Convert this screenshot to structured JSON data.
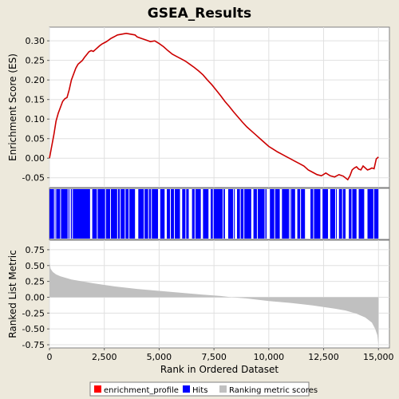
{
  "chart_data": {
    "type": "line",
    "title": "GSEA_Results",
    "xlabel": "Rank in Ordered Dataset",
    "xlim": [
      0,
      15500
    ],
    "x_ticks": [
      0,
      2500,
      5000,
      7500,
      10000,
      12500,
      15000
    ],
    "x_tick_labels": [
      "0",
      "2,500",
      "5,000",
      "7,500",
      "10,000",
      "12,500",
      "15,000"
    ],
    "n_items": 15000,
    "enrichment": {
      "ylabel": "Enrichment Score (ES)",
      "ylim": [
        -0.075,
        0.335
      ],
      "y_ticks": [
        -0.05,
        0.0,
        0.05,
        0.1,
        0.15,
        0.2,
        0.25,
        0.3
      ],
      "y_tick_labels": [
        "-0.05",
        "0.00",
        "0.05",
        "0.10",
        "0.15",
        "0.20",
        "0.25",
        "0.30"
      ],
      "series": [
        {
          "name": "enrichment_profile",
          "color": "#cc0000",
          "points": [
            [
              0,
              0.0
            ],
            [
              100,
              0.03
            ],
            [
              200,
              0.06
            ],
            [
              300,
              0.095
            ],
            [
              400,
              0.115
            ],
            [
              500,
              0.13
            ],
            [
              600,
              0.145
            ],
            [
              700,
              0.152
            ],
            [
              800,
              0.155
            ],
            [
              900,
              0.175
            ],
            [
              1000,
              0.2
            ],
            [
              1100,
              0.215
            ],
            [
              1200,
              0.23
            ],
            [
              1300,
              0.24
            ],
            [
              1400,
              0.245
            ],
            [
              1500,
              0.25
            ],
            [
              1600,
              0.258
            ],
            [
              1700,
              0.265
            ],
            [
              1800,
              0.272
            ],
            [
              1900,
              0.275
            ],
            [
              2000,
              0.273
            ],
            [
              2100,
              0.278
            ],
            [
              2200,
              0.283
            ],
            [
              2300,
              0.288
            ],
            [
              2400,
              0.292
            ],
            [
              2500,
              0.295
            ],
            [
              2600,
              0.298
            ],
            [
              2700,
              0.302
            ],
            [
              2800,
              0.306
            ],
            [
              2900,
              0.309
            ],
            [
              3000,
              0.312
            ],
            [
              3100,
              0.315
            ],
            [
              3200,
              0.316
            ],
            [
              3300,
              0.317
            ],
            [
              3400,
              0.318
            ],
            [
              3500,
              0.319
            ],
            [
              3600,
              0.318
            ],
            [
              3700,
              0.317
            ],
            [
              3800,
              0.316
            ],
            [
              3900,
              0.315
            ],
            [
              4000,
              0.31
            ],
            [
              4200,
              0.306
            ],
            [
              4400,
              0.302
            ],
            [
              4600,
              0.298
            ],
            [
              4800,
              0.3
            ],
            [
              5000,
              0.293
            ],
            [
              5200,
              0.285
            ],
            [
              5400,
              0.275
            ],
            [
              5600,
              0.266
            ],
            [
              5800,
              0.26
            ],
            [
              6000,
              0.254
            ],
            [
              6200,
              0.248
            ],
            [
              6400,
              0.24
            ],
            [
              6600,
              0.232
            ],
            [
              6800,
              0.223
            ],
            [
              7000,
              0.213
            ],
            [
              7200,
              0.2
            ],
            [
              7400,
              0.188
            ],
            [
              7600,
              0.174
            ],
            [
              7800,
              0.16
            ],
            [
              8000,
              0.145
            ],
            [
              8200,
              0.132
            ],
            [
              8400,
              0.118
            ],
            [
              8600,
              0.105
            ],
            [
              8800,
              0.092
            ],
            [
              9000,
              0.08
            ],
            [
              9200,
              0.07
            ],
            [
              9400,
              0.06
            ],
            [
              9600,
              0.05
            ],
            [
              9800,
              0.04
            ],
            [
              10000,
              0.03
            ],
            [
              10200,
              0.023
            ],
            [
              10400,
              0.016
            ],
            [
              10600,
              0.01
            ],
            [
              10800,
              0.004
            ],
            [
              11000,
              -0.002
            ],
            [
              11200,
              -0.008
            ],
            [
              11400,
              -0.014
            ],
            [
              11600,
              -0.02
            ],
            [
              11800,
              -0.03
            ],
            [
              12000,
              -0.036
            ],
            [
              12200,
              -0.042
            ],
            [
              12400,
              -0.045
            ],
            [
              12600,
              -0.038
            ],
            [
              12800,
              -0.045
            ],
            [
              13000,
              -0.048
            ],
            [
              13200,
              -0.042
            ],
            [
              13400,
              -0.046
            ],
            [
              13600,
              -0.055
            ],
            [
              13700,
              -0.045
            ],
            [
              13800,
              -0.03
            ],
            [
              13900,
              -0.025
            ],
            [
              14000,
              -0.022
            ],
            [
              14100,
              -0.028
            ],
            [
              14200,
              -0.03
            ],
            [
              14300,
              -0.02
            ],
            [
              14400,
              -0.025
            ],
            [
              14500,
              -0.03
            ],
            [
              14600,
              -0.028
            ],
            [
              14700,
              -0.025
            ],
            [
              14800,
              -0.027
            ],
            [
              14900,
              -0.002
            ],
            [
              15000,
              0.003
            ]
          ]
        }
      ]
    },
    "hits": {
      "name": "Hits",
      "color": "#0000ff",
      "regions": [
        [
          0,
          1850
        ],
        [
          1950,
          3900
        ],
        [
          4050,
          4950
        ],
        [
          5050,
          5250
        ],
        [
          5350,
          5950
        ],
        [
          6050,
          6350
        ],
        [
          6500,
          6900
        ],
        [
          7000,
          7250
        ],
        [
          7350,
          8000
        ],
        [
          8150,
          8450
        ],
        [
          8550,
          9200
        ],
        [
          9300,
          9900
        ],
        [
          10050,
          10500
        ],
        [
          10600,
          11200
        ],
        [
          11300,
          11650
        ],
        [
          11900,
          12350
        ],
        [
          12450,
          12700
        ],
        [
          12800,
          13100
        ],
        [
          13200,
          13500
        ],
        [
          13650,
          14000
        ],
        [
          14100,
          14350
        ],
        [
          14500,
          15000
        ]
      ]
    },
    "ranking": {
      "name": "Ranking metric scores",
      "color": "#c0c0c0",
      "ylabel": "Ranked List Metric",
      "ylim": [
        -0.8,
        0.9
      ],
      "y_ticks": [
        -0.75,
        -0.5,
        -0.25,
        0.0,
        0.25,
        0.5,
        0.75
      ],
      "y_tick_labels": [
        "-0.75",
        "-0.50",
        "-0.25",
        "0.00",
        "0.25",
        "0.50",
        "0.75"
      ],
      "points": [
        [
          0,
          0.55
        ],
        [
          50,
          0.45
        ],
        [
          150,
          0.4
        ],
        [
          300,
          0.36
        ],
        [
          500,
          0.33
        ],
        [
          1000,
          0.28
        ],
        [
          2000,
          0.22
        ],
        [
          3000,
          0.17
        ],
        [
          4000,
          0.13
        ],
        [
          5000,
          0.1
        ],
        [
          6000,
          0.07
        ],
        [
          7000,
          0.04
        ],
        [
          7800,
          0.02
        ],
        [
          8300,
          0.0
        ],
        [
          9000,
          -0.02
        ],
        [
          10000,
          -0.06
        ],
        [
          11000,
          -0.09
        ],
        [
          12000,
          -0.13
        ],
        [
          13000,
          -0.18
        ],
        [
          13500,
          -0.21
        ],
        [
          14000,
          -0.26
        ],
        [
          14400,
          -0.32
        ],
        [
          14700,
          -0.4
        ],
        [
          14850,
          -0.5
        ],
        [
          14950,
          -0.6
        ],
        [
          15000,
          -0.75
        ]
      ]
    },
    "legend": {
      "placement": "bottom-center",
      "entries": [
        {
          "label": "enrichment_profile",
          "color": "#ff0000"
        },
        {
          "label": "Hits",
          "color": "#0000ff"
        },
        {
          "label": "Ranking metric scores",
          "color": "#c0c0c0"
        }
      ]
    },
    "colors": {
      "panel_background": "#ffffff",
      "page_background": "#ede9dc",
      "grid": "#e0e0e0"
    },
    "grid": true
  }
}
